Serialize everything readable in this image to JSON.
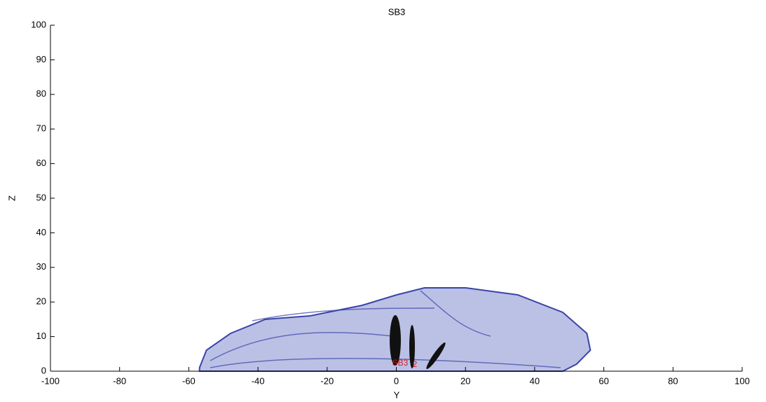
{
  "chart_data": {
    "type": "shape",
    "title": "SB3",
    "x_label": "Y",
    "y_label": "Z",
    "xlim": [
      -100,
      100
    ],
    "xticks": [
      -100,
      -80,
      -60,
      -40,
      -20,
      0,
      20,
      40,
      60,
      80,
      100
    ],
    "ylim": [
      0,
      100
    ],
    "yticks": [
      0,
      10,
      20,
      30,
      40,
      50,
      60,
      70,
      80,
      90,
      100
    ],
    "annotations": [
      "SB3",
      "2"
    ]
  }
}
